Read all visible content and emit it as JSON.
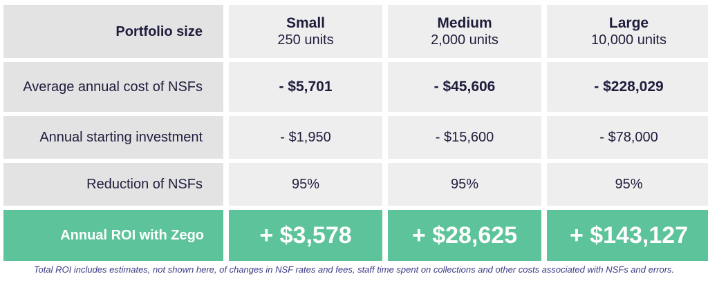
{
  "header": {
    "label": "Portfolio size",
    "columns": [
      {
        "name": "Small",
        "units": "250 units"
      },
      {
        "name": "Medium",
        "units": "2,000 units"
      },
      {
        "name": "Large",
        "units": "10,000 units"
      }
    ]
  },
  "rows": [
    {
      "label": "Average annual cost of NSFs",
      "values": [
        "- $5,701",
        "- $45,606",
        "- $228,029"
      ]
    },
    {
      "label": "Annual starting investment",
      "values": [
        "- $1,950",
        "- $15,600",
        "- $78,000"
      ]
    },
    {
      "label": "Reduction of NSFs",
      "values": [
        "95%",
        "95%",
        "95%"
      ]
    }
  ],
  "roi": {
    "label": "Annual ROI with Zego",
    "values": [
      "+ $3,578",
      "+ $28,625",
      "+ $143,127"
    ]
  },
  "footnote": "Total ROI includes estimates, not shown here, of changes in NSF rates and fees, staff time spent on collections and other costs associated with NSFs and errors.",
  "colors": {
    "label_bg": "#e4e3e4",
    "cell_bg": "#efeeef",
    "roi_bg": "#5cc39a",
    "text": "#1d1d3b",
    "footnote": "#3c3a86"
  }
}
